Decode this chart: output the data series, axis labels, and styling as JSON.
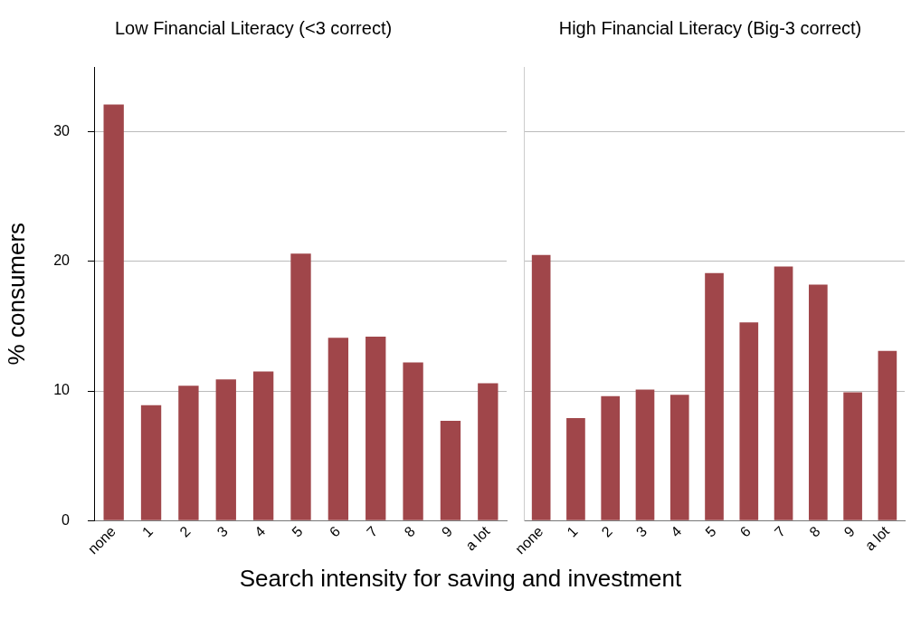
{
  "chart_data": [
    {
      "type": "bar",
      "title": "Low Financial Literacy (<3 correct)",
      "ylabel": "% consumers",
      "xlabel": "Search intensity for saving and investment",
      "categories": [
        "none",
        "1",
        "2",
        "3",
        "4",
        "5",
        "6",
        "7",
        "8",
        "9",
        "a lot"
      ],
      "values": [
        32.1,
        8.9,
        10.4,
        10.9,
        11.5,
        20.6,
        14.1,
        14.2,
        12.2,
        7.7,
        10.6
      ],
      "color": "#a0464a",
      "ylim": [
        0,
        35
      ],
      "yticks": [
        0,
        10,
        20,
        30
      ],
      "grid": "y"
    },
    {
      "type": "bar",
      "title": "High Financial Literacy (Big-3 correct)",
      "categories": [
        "none",
        "1",
        "2",
        "3",
        "4",
        "5",
        "6",
        "7",
        "8",
        "9",
        "a lot"
      ],
      "values": [
        20.5,
        7.9,
        9.6,
        10.1,
        9.7,
        19.1,
        15.3,
        19.6,
        18.2,
        9.9,
        13.1
      ],
      "color": "#a0464a",
      "ylim": [
        0,
        35
      ],
      "yticks": [
        0,
        10,
        20,
        30
      ],
      "grid": "y",
      "tick_labels": "x"
    }
  ]
}
